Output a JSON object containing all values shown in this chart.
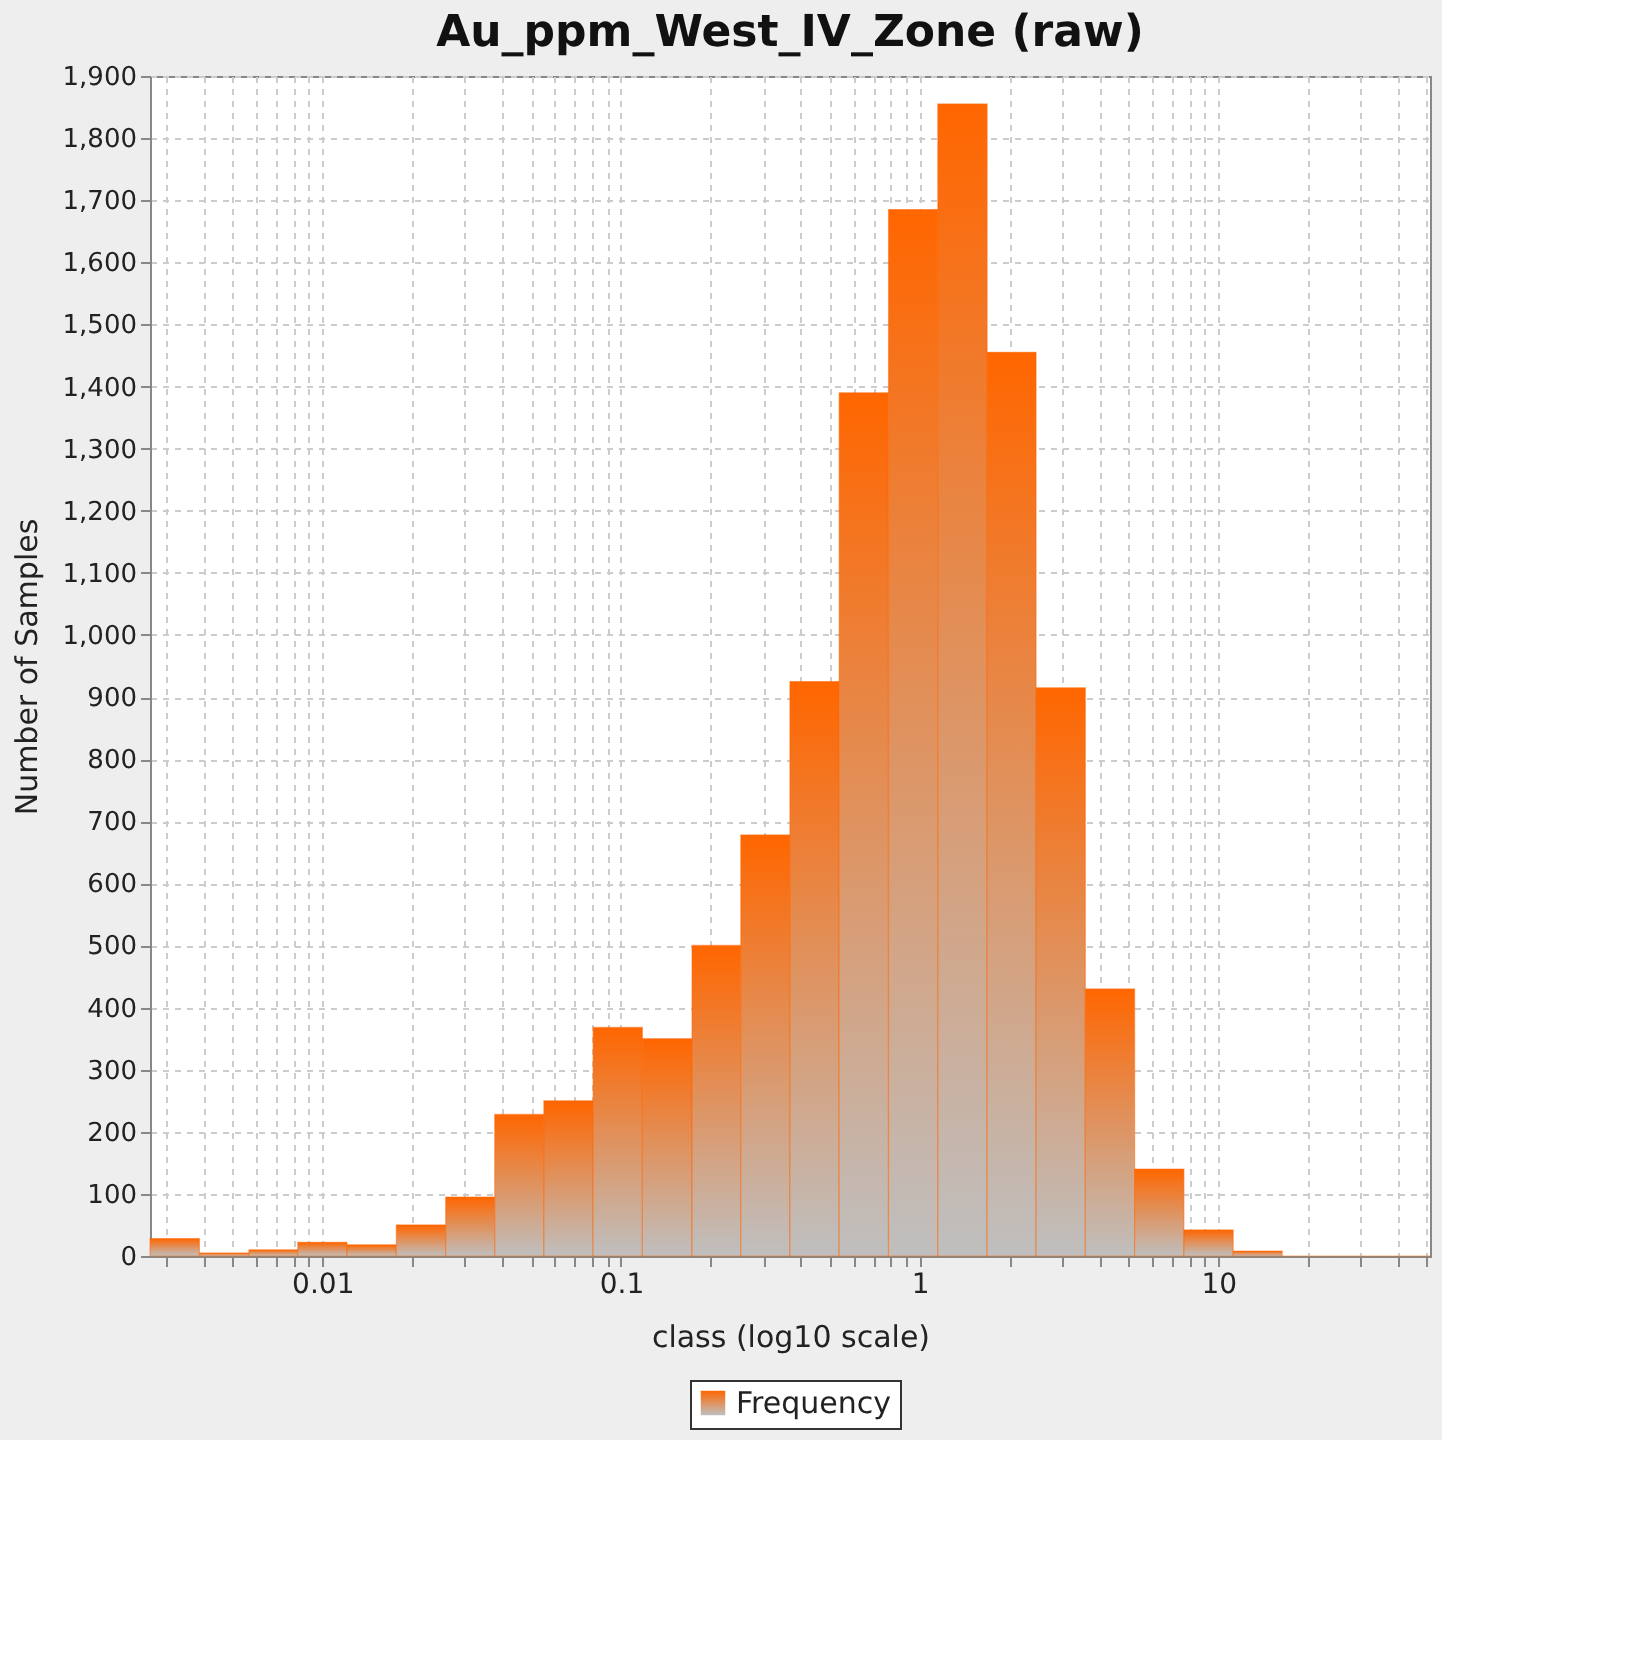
{
  "chart_data": {
    "type": "histogram",
    "title": "Au_ppm_West_IV_Zone (raw)",
    "xlabel": "class (log10 scale)",
    "ylabel": "Number of Samples",
    "bins": [
      0.00265,
      0.00388,
      0.00568,
      0.00828,
      0.0121,
      0.0177,
      0.0259,
      0.0378,
      0.0552,
      0.0807,
      0.118,
      0.173,
      0.252,
      0.368,
      0.538,
      0.787,
      1.151,
      1.683,
      2.455,
      3.589,
      5.248,
      7.674,
      11.22,
      16.37,
      23.93,
      34.99,
      51.17
    ],
    "series": [
      {
        "name": "Frequency",
        "color": "#ff6600",
        "values": [
          28,
          5,
          10,
          22,
          18,
          50,
          95,
          228,
          250,
          368,
          350,
          500,
          678,
          925,
          1390,
          1685,
          1855,
          1455,
          915,
          430,
          140,
          42,
          8,
          0,
          0,
          0
        ]
      }
    ],
    "log": "x",
    "xlim": [
      0.00265,
      51.17
    ],
    "ylim": [
      0,
      1900
    ],
    "xticks": [
      {
        "value": 0.003,
        "label": null
      },
      {
        "value": 0.004,
        "label": null
      },
      {
        "value": 0.005,
        "label": null
      },
      {
        "value": 0.006,
        "label": null
      },
      {
        "value": 0.007,
        "label": null
      },
      {
        "value": 0.008,
        "label": null
      },
      {
        "value": 0.009,
        "label": null
      },
      0.01,
      {
        "value": 0.02,
        "label": null
      },
      {
        "value": 0.03,
        "label": null
      },
      {
        "value": 0.04,
        "label": null
      },
      {
        "value": 0.05,
        "label": null
      },
      {
        "value": 0.06,
        "label": null
      },
      {
        "value": 0.07,
        "label": null
      },
      {
        "value": 0.08,
        "label": null
      },
      {
        "value": 0.09,
        "label": null
      },
      0.1,
      {
        "value": 0.2,
        "label": null
      },
      {
        "value": 0.3,
        "label": null
      },
      {
        "value": 0.4,
        "label": null
      },
      {
        "value": 0.5,
        "label": null
      },
      {
        "value": 0.6,
        "label": null
      },
      {
        "value": 0.7,
        "label": null
      },
      {
        "value": 0.8,
        "label": null
      },
      {
        "value": 0.9,
        "label": null
      },
      1,
      {
        "value": 2,
        "label": null
      },
      {
        "value": 3,
        "label": null
      },
      {
        "value": 4,
        "label": null
      },
      {
        "value": 5,
        "label": null
      },
      {
        "value": 6,
        "label": null
      },
      {
        "value": 7,
        "label": null
      },
      {
        "value": 8,
        "label": null
      },
      {
        "value": 9,
        "label": null
      },
      10,
      {
        "value": 20,
        "label": null
      },
      {
        "value": 30,
        "label": null
      },
      {
        "value": 40,
        "label": null
      },
      {
        "value": 50,
        "label": null
      }
    ],
    "yticks": [
      0,
      100,
      200,
      300,
      400,
      500,
      600,
      700,
      800,
      900,
      {
        "value": 1000,
        "label": "1,000"
      },
      {
        "value": 1100,
        "label": "1,100"
      },
      {
        "value": 1200,
        "label": "1,200"
      },
      {
        "value": 1300,
        "label": "1,300"
      },
      {
        "value": 1400,
        "label": "1,400"
      },
      {
        "value": 1500,
        "label": "1,500"
      },
      {
        "value": 1600,
        "label": "1,600"
      },
      {
        "value": 1700,
        "label": "1,700"
      },
      {
        "value": 1800,
        "label": "1,800"
      },
      {
        "value": 1900,
        "label": "1,900"
      }
    ],
    "grid": true,
    "legend": "bottom"
  }
}
